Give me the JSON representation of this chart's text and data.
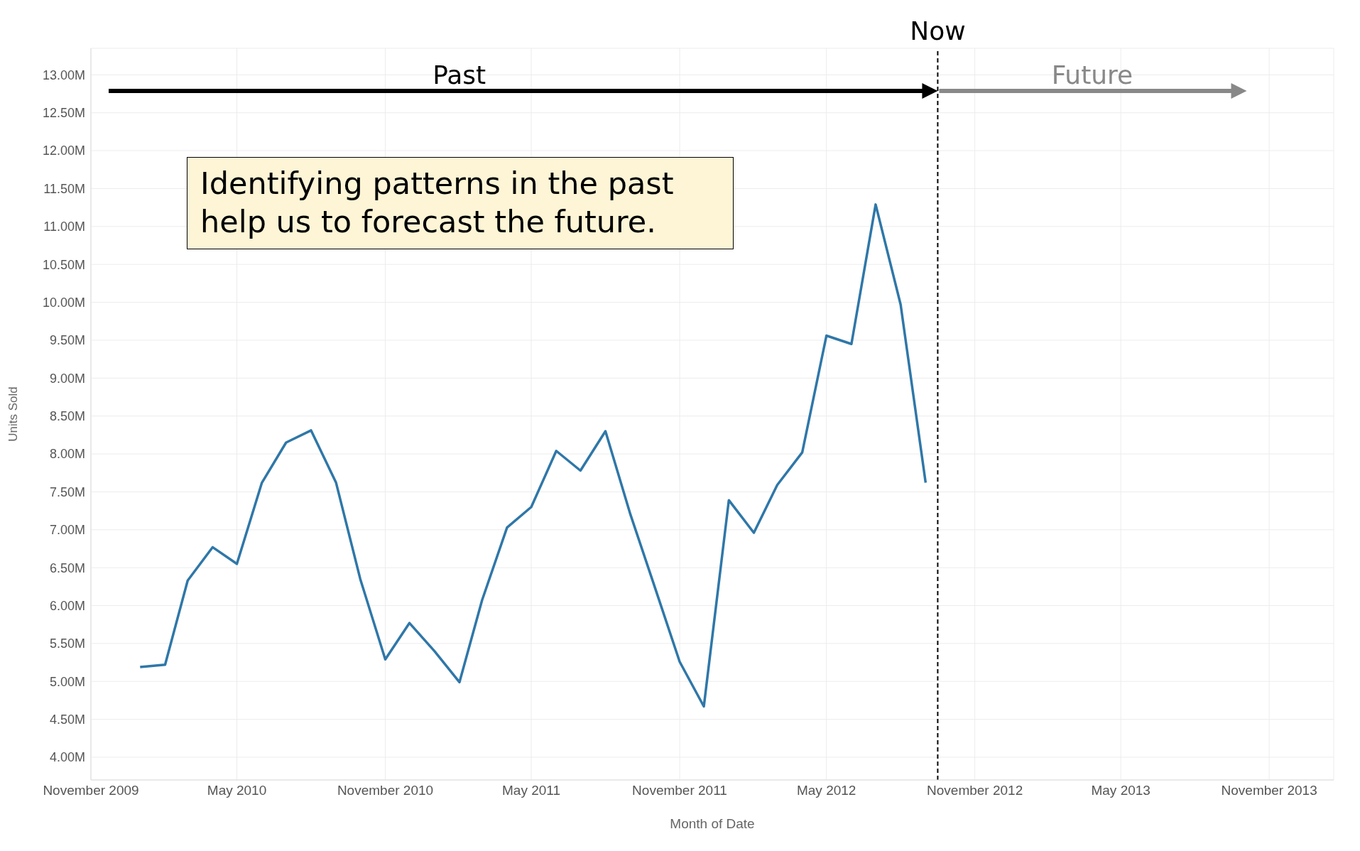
{
  "chart_data": {
    "type": "line",
    "xlabel": "Month of Date",
    "ylabel": "Units Sold",
    "x": [
      "2010-01",
      "2010-02",
      "2010-03",
      "2010-04",
      "2010-05",
      "2010-06",
      "2010-07",
      "2010-08",
      "2010-09",
      "2010-10",
      "2010-11",
      "2010-12",
      "2011-01",
      "2011-02",
      "2011-03",
      "2011-04",
      "2011-05",
      "2011-06",
      "2011-07",
      "2011-08",
      "2011-09",
      "2011-10",
      "2011-11",
      "2011-12",
      "2012-01",
      "2012-02",
      "2012-03",
      "2012-04",
      "2012-05",
      "2012-06",
      "2012-07",
      "2012-08",
      "2012-09"
    ],
    "series": [
      {
        "color": "#2f77a8",
        "values": [
          5.19,
          5.22,
          6.33,
          6.77,
          6.55,
          7.62,
          8.15,
          8.31,
          7.62,
          6.35,
          5.29,
          5.77,
          5.4,
          4.99,
          6.07,
          7.03,
          7.3,
          8.04,
          7.78,
          8.3,
          7.2,
          6.25,
          5.26,
          4.67,
          7.39,
          6.96,
          7.59,
          8.02,
          9.56,
          9.45,
          11.29,
          9.97,
          7.62
        ]
      }
    ],
    "xlim": [
      "2009-11-01",
      "2014-01-20"
    ],
    "xticks": [
      {
        "value": "2009-11",
        "label": "November 2009"
      },
      {
        "value": "2010-05",
        "label": "May 2010"
      },
      {
        "value": "2010-11",
        "label": "November 2010"
      },
      {
        "value": "2011-05",
        "label": "May 2011"
      },
      {
        "value": "2011-11",
        "label": "November 2011"
      },
      {
        "value": "2012-05",
        "label": "May 2012"
      },
      {
        "value": "2012-11",
        "label": "November 2012"
      },
      {
        "value": "2013-05",
        "label": "May 2013"
      },
      {
        "value": "2013-11",
        "label": "November 2013"
      }
    ],
    "ylim": [
      3.7,
      13.35
    ],
    "yticks": [
      {
        "value": 4,
        "label": "4.00M"
      },
      {
        "value": 4.5,
        "label": "4.50M"
      },
      {
        "value": 5,
        "label": "5.00M"
      },
      {
        "value": 5.5,
        "label": "5.50M"
      },
      {
        "value": 6,
        "label": "6.00M"
      },
      {
        "value": 6.5,
        "label": "6.50M"
      },
      {
        "value": 7,
        "label": "7.00M"
      },
      {
        "value": 7.5,
        "label": "7.50M"
      },
      {
        "value": 8,
        "label": "8.00M"
      },
      {
        "value": 8.5,
        "label": "8.50M"
      },
      {
        "value": 9,
        "label": "9.00M"
      },
      {
        "value": 9.5,
        "label": "9.50M"
      },
      {
        "value": 10,
        "label": "10.00M"
      },
      {
        "value": 10.5,
        "label": "10.50M"
      },
      {
        "value": 11,
        "label": "11.00M"
      },
      {
        "value": 11.5,
        "label": "11.50M"
      },
      {
        "value": 12,
        "label": "12.00M"
      },
      {
        "value": 12.5,
        "label": "12.50M"
      },
      {
        "value": 13,
        "label": "13.00M"
      }
    ],
    "grid": true,
    "marker": "none",
    "line_style": "solid",
    "ref_lines": [
      {
        "axis": "x",
        "value": "2012-09-16",
        "label": "Now",
        "color": "#000000",
        "line_style": "dashed"
      }
    ],
    "annotations": [
      "Past",
      "Future",
      "Identifying patterns in the past help us to forecast the future."
    ]
  }
}
